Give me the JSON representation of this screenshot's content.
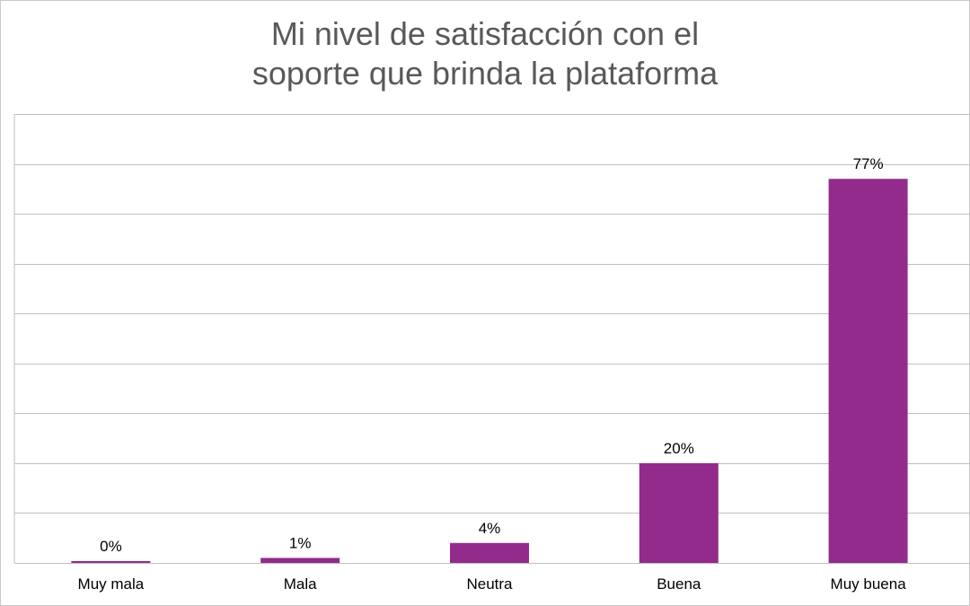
{
  "chart_data": {
    "type": "bar",
    "title_lines": [
      "Mi nivel de satisfacción con el",
      "soporte que brinda la plataforma"
    ],
    "categories": [
      "Muy mala",
      "Mala",
      "Neutra",
      "Buena",
      "Muy buena"
    ],
    "values": [
      0,
      1,
      4,
      20,
      77
    ],
    "data_labels": [
      "0%",
      "1%",
      "4%",
      "20%",
      "77%"
    ],
    "unit": "%",
    "ylim": [
      0,
      90
    ],
    "grid": true,
    "gridline_step": 10,
    "legend": "none",
    "bar_color": "#922B8C",
    "grid_color": "#bfbfbf"
  }
}
